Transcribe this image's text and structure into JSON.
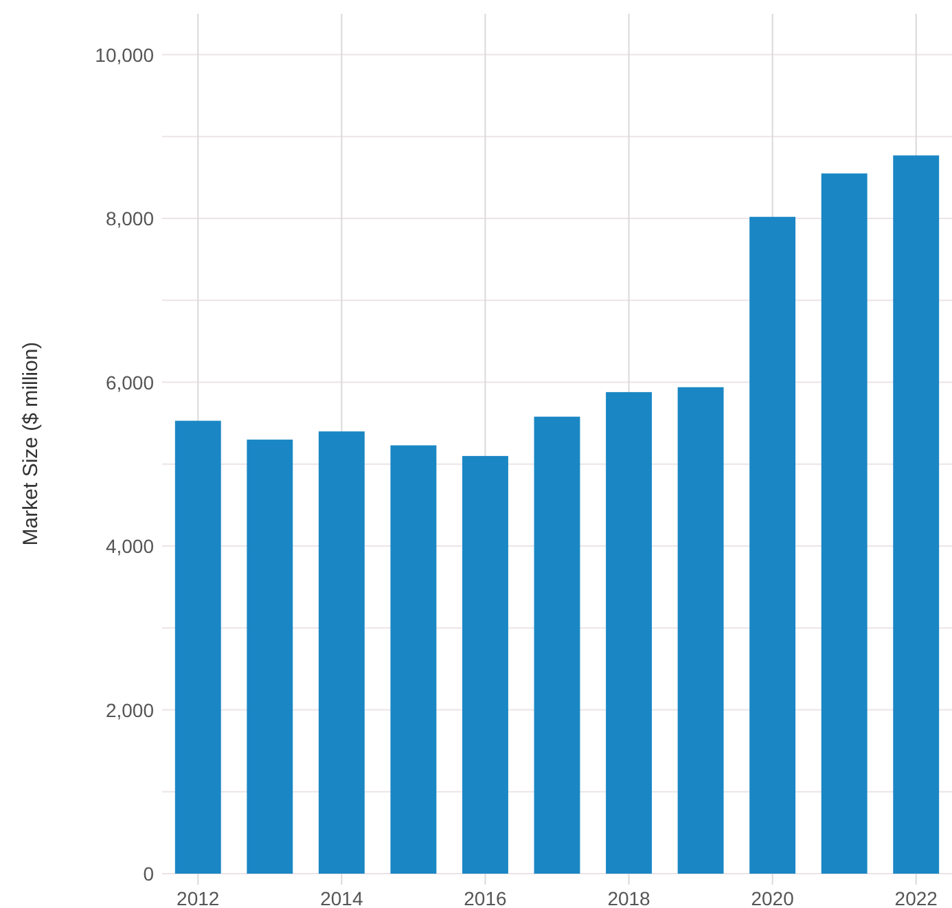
{
  "chart_data": {
    "type": "bar",
    "ylabel": "Market Size ($ million)",
    "categories": [
      "2012",
      null,
      "2014",
      null,
      "2016",
      null,
      "2018",
      null,
      "2020",
      null,
      "2022"
    ],
    "values": [
      5530,
      5300,
      5400,
      5230,
      5100,
      5580,
      5880,
      5940,
      8020,
      8550,
      8770
    ],
    "color": "#1a87c4",
    "ylim": [
      0,
      10500
    ],
    "yticks": [
      0,
      {
        "value": 1000,
        "label": null
      },
      {
        "value": 2000,
        "label": "2,000"
      },
      {
        "value": 3000,
        "label": null
      },
      {
        "value": 4000,
        "label": "4,000"
      },
      {
        "value": 5000,
        "label": null
      },
      {
        "value": 6000,
        "label": "6,000"
      },
      {
        "value": 7000,
        "label": null
      },
      {
        "value": 8000,
        "label": "8,000"
      },
      {
        "value": 9000,
        "label": null
      },
      {
        "value": 10000,
        "label": "10,000"
      }
    ],
    "grid": true
  }
}
